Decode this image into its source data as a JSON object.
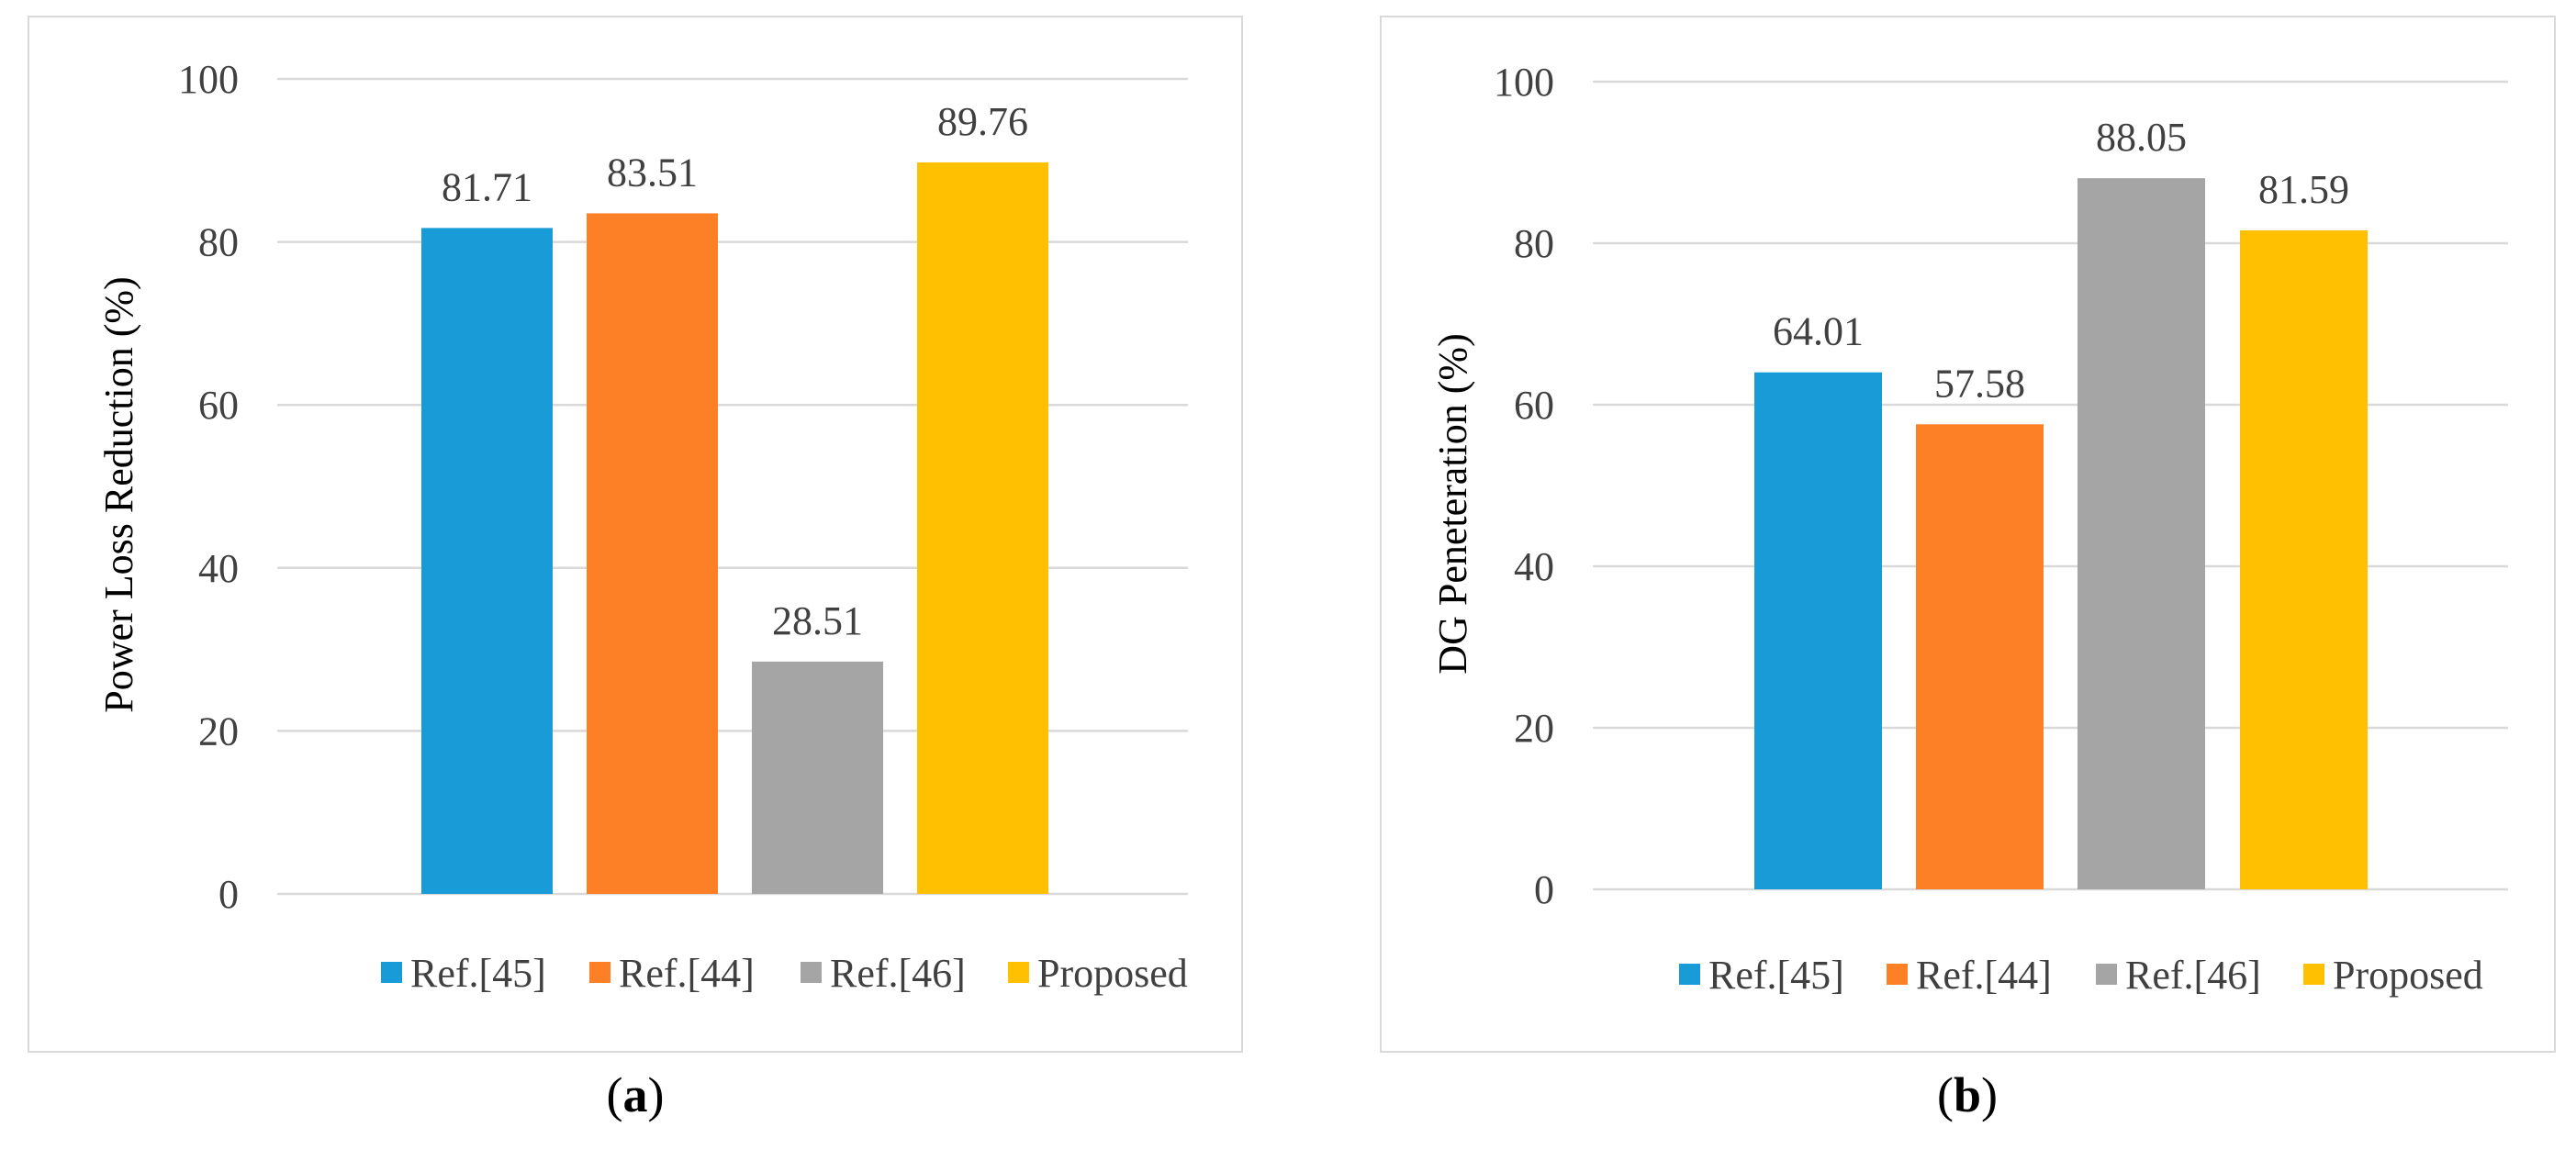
{
  "chart_data": [
    {
      "type": "bar",
      "panel": "a",
      "title": "",
      "xlabel": "",
      "ylabel": "Power Loss Reduction (%)",
      "ylim": [
        0,
        100
      ],
      "yticks": [
        0,
        20,
        40,
        60,
        80,
        100
      ],
      "grid": true,
      "legend_position": "bottom",
      "categories": [
        "Ref.[45]",
        "Ref.[44]",
        "Ref.[46]",
        "Proposed"
      ],
      "values": [
        81.71,
        83.51,
        28.51,
        89.76
      ],
      "value_labels": [
        "81.71",
        "83.51",
        "28.51",
        "89.76"
      ],
      "colors": [
        "#189bd7",
        "#fd7f26",
        "#a5a5a5",
        "#fec000"
      ]
    },
    {
      "type": "bar",
      "panel": "b",
      "title": "",
      "xlabel": "",
      "ylabel": "DG Peneteration (%)",
      "ylim": [
        0,
        100
      ],
      "yticks": [
        0,
        20,
        40,
        60,
        80,
        100
      ],
      "grid": true,
      "legend_position": "bottom",
      "categories": [
        "Ref.[45]",
        "Ref.[44]",
        "Ref.[46]",
        "Proposed"
      ],
      "values": [
        64.01,
        57.58,
        88.05,
        81.59
      ],
      "value_labels": [
        "64.01",
        "57.58",
        "88.05",
        "81.59"
      ],
      "colors": [
        "#189bd7",
        "#fd7f26",
        "#a5a5a5",
        "#fec000"
      ]
    }
  ],
  "captions": {
    "a": {
      "open": "(",
      "letter": "a",
      "close": ")"
    },
    "b": {
      "open": "(",
      "letter": "b",
      "close": ")"
    }
  }
}
